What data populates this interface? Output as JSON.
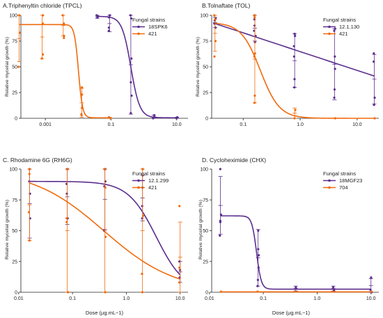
{
  "colors": {
    "purple": "#5b2d8e",
    "orange": "#f06a0c",
    "axis": "#222222"
  },
  "shared_labels": {
    "xlabel": "Dose (µg.mL−1)",
    "ylabel": "Relative mycelial growth (%)",
    "legend_title": "Fungal strains"
  },
  "chart_data": [
    {
      "type": "scatter",
      "panel": "A",
      "title": "A.Triphenyltin chloride (TPCL)",
      "xscale": "log",
      "xlim": [
        0.00018,
        22
      ],
      "ylim": [
        0,
        100
      ],
      "xticks": [
        0.001,
        0.1,
        10.0
      ],
      "xtick_labels": [
        "0.001",
        "0.1",
        "10.0"
      ],
      "yticks": [
        0,
        25,
        50,
        75,
        100
      ],
      "legend": "top-right",
      "fits": [
        {
          "color": "purple",
          "top": 99,
          "bottom": 0.5,
          "ec50": 0.4,
          "hill": 3.2,
          "x_from": 0.038,
          "x_to": 10
        },
        {
          "color": "orange",
          "top": 91,
          "bottom": 0.5,
          "ec50": 0.0102,
          "hill": 7,
          "x_from": 0.00016,
          "x_to": 0.09
        }
      ],
      "series": [
        {
          "name": "18SPK6",
          "color": "purple",
          "x": [
            0.038,
            0.038,
            0.038,
            0.09,
            0.09,
            0.09,
            0.09,
            0.4,
            0.4,
            0.4,
            0.4,
            0.4,
            0.4,
            2,
            2,
            2,
            10,
            10
          ],
          "y": [
            100,
            99,
            98,
            100,
            98,
            88,
            85,
            100,
            97,
            58,
            35,
            22,
            5,
            3,
            1,
            0,
            1,
            0
          ],
          "errorbars": [
            {
              "x": 0.038,
              "lo": 97,
              "hi": 100
            },
            {
              "x": 0.09,
              "lo": 84,
              "hi": 100
            },
            {
              "x": 0.4,
              "lo": 4,
              "hi": 100
            },
            {
              "x": 2,
              "lo": 0,
              "hi": 3
            },
            {
              "x": 10,
              "lo": 0,
              "hi": 1
            }
          ]
        },
        {
          "name": "421",
          "color": "orange",
          "x": [
            0.00016,
            0.00016,
            0.00016,
            0.0008,
            0.0008,
            0.0008,
            0.0008,
            0.0035,
            0.0035,
            0.0035,
            0.0035,
            0.0128,
            0.0128,
            0.0128,
            0.0128,
            0.0128,
            0.09,
            0.09
          ],
          "y": [
            100,
            83,
            50,
            100,
            92,
            62,
            58,
            100,
            92,
            80,
            78,
            30,
            23,
            10,
            4,
            3,
            1,
            0
          ],
          "errorbars": [
            {
              "x": 0.00016,
              "lo": 55,
              "hi": 100
            },
            {
              "x": 0.0008,
              "lo": 58,
              "hi": 100
            },
            {
              "x": 0.0035,
              "lo": 80,
              "hi": 100
            },
            {
              "x": 0.0128,
              "lo": 1,
              "hi": 29
            },
            {
              "x": 0.09,
              "lo": 0,
              "hi": 1
            }
          ]
        }
      ]
    },
    {
      "type": "scatter",
      "panel": "B",
      "title": "B.Tolnaftate (TOL)",
      "xscale": "log",
      "xlim": [
        0.028,
        24
      ],
      "ylim": [
        0,
        100
      ],
      "xticks": [
        0.1,
        1.0,
        10.0
      ],
      "xtick_labels": [
        "0.1",
        "1.0",
        "10.0"
      ],
      "yticks": [
        0,
        25,
        50,
        75,
        100
      ],
      "legend": "top-right",
      "fits": [
        {
          "color": "purple",
          "type": "line_logx",
          "x_from": 0.032,
          "y_from": 92,
          "x_to": 20,
          "y_to": 41
        },
        {
          "color": "orange",
          "top": 93,
          "bottom": 0,
          "ec50": 0.2,
          "hill": 2.6,
          "x_from": 0.032,
          "x_to": 20
        }
      ],
      "series": [
        {
          "name": "12.1.130",
          "color": "purple",
          "x": [
            0.032,
            0.032,
            0.032,
            0.032,
            0.16,
            0.16,
            0.16,
            0.16,
            0.16,
            0.16,
            0.8,
            0.8,
            0.8,
            0.8,
            0.8,
            0.8,
            4,
            4,
            4,
            4,
            4,
            4,
            20,
            20,
            20,
            20
          ],
          "y": [
            97,
            95,
            92,
            88,
            100,
            96,
            90,
            85,
            80,
            74,
            82,
            80,
            70,
            60,
            38,
            30,
            87,
            85,
            60,
            48,
            28,
            20,
            63,
            55,
            20,
            13
          ],
          "errorbars": [
            {
              "x": 0.032,
              "lo": 88,
              "hi": 98
            },
            {
              "x": 0.16,
              "lo": 75,
              "hi": 100
            },
            {
              "x": 0.8,
              "lo": 30,
              "hi": 82
            },
            {
              "x": 4,
              "lo": 18,
              "hi": 87
            },
            {
              "x": 20,
              "lo": 14,
              "hi": 62
            }
          ]
        },
        {
          "name": "421",
          "color": "orange",
          "x": [
            0.032,
            0.032,
            0.032,
            0.032,
            0.16,
            0.16,
            0.16,
            0.16,
            0.16,
            0.16,
            0.8,
            0.8,
            4,
            20
          ],
          "y": [
            100,
            96,
            75,
            60,
            100,
            98,
            63,
            60,
            22,
            15,
            8,
            0,
            0,
            0
          ],
          "errorbars": [
            {
              "x": 0.032,
              "lo": 65,
              "hi": 100
            },
            {
              "x": 0.16,
              "lo": 15,
              "hi": 100
            },
            {
              "x": 0.8,
              "lo": 0,
              "hi": 10
            },
            {
              "x": 4,
              "lo": 0,
              "hi": 0
            },
            {
              "x": 20,
              "lo": 0,
              "hi": 0
            }
          ]
        }
      ]
    },
    {
      "type": "scatter",
      "panel": "C",
      "title": "C. Rhodamine 6G  (RH6G)",
      "xscale": "log",
      "xlim": [
        0.011,
        14
      ],
      "ylim": [
        0,
        100
      ],
      "xticks": [
        0.01,
        0.1,
        1.0,
        10.0
      ],
      "xtick_labels": [
        "0.01",
        "0.1",
        "1.0",
        "10.0"
      ],
      "yticks": [
        0,
        25,
        50,
        75,
        100
      ],
      "legend": "top-right",
      "fits": [
        {
          "color": "purple",
          "top": 90,
          "bottom": 0,
          "ec50": 3.6,
          "hill": 1.65,
          "x_from": 0.016,
          "x_to": 10
        },
        {
          "color": "orange",
          "top": 100,
          "bottom": 0,
          "ec50": 0.38,
          "hill": 0.65,
          "x_from": 0.016,
          "x_to": 10
        }
      ],
      "series": [
        {
          "name": "12.1.299",
          "color": "purple",
          "x": [
            0.016,
            0.016,
            0.016,
            0.016,
            0.08,
            0.08,
            0.08,
            0.08,
            0.4,
            0.4,
            0.4,
            0.4,
            2,
            2,
            2,
            2,
            10,
            10,
            10
          ],
          "y": [
            100,
            90,
            80,
            60,
            100,
            88,
            80,
            60,
            100,
            90,
            86,
            50,
            100,
            85,
            70,
            60,
            25,
            18,
            12
          ],
          "errorbars": [
            {
              "x": 0.016,
              "lo": 44,
              "hi": 100
            },
            {
              "x": 0.08,
              "lo": 55,
              "hi": 100
            },
            {
              "x": 0.4,
              "lo": 51,
              "hi": 100
            },
            {
              "x": 2,
              "lo": 58,
              "hi": 95
            },
            {
              "x": 10,
              "lo": 8,
              "hi": 25
            }
          ]
        },
        {
          "name": "421",
          "color": "orange",
          "x": [
            0.016,
            0.016,
            0.016,
            0.016,
            0.08,
            0.08,
            0.08,
            0.08,
            0.4,
            0.4,
            0.4,
            0.4,
            2,
            2,
            2,
            2,
            10,
            10,
            10
          ],
          "y": [
            100,
            96,
            65,
            42,
            100,
            60,
            57,
            0,
            100,
            85,
            45,
            0,
            100,
            62,
            15,
            0,
            70,
            20,
            8
          ],
          "errorbars": [
            {
              "x": 0.016,
              "lo": 42,
              "hi": 100
            },
            {
              "x": 0.08,
              "lo": 0,
              "hi": 100
            },
            {
              "x": 0.4,
              "lo": 0,
              "hi": 100
            },
            {
              "x": 2,
              "lo": 0,
              "hi": 100
            },
            {
              "x": 10,
              "lo": 0,
              "hi": 57
            }
          ]
        }
      ]
    },
    {
      "type": "scatter",
      "panel": "D",
      "title": "D. Cycloheximide (CHX)",
      "xscale": "log",
      "xlim": [
        0.011,
        14
      ],
      "ylim": [
        0,
        100
      ],
      "xticks": [
        0.01,
        0.1,
        1.0,
        10.0
      ],
      "xtick_labels": [
        "0.01",
        "0.1",
        "1.0",
        "10.0"
      ],
      "yticks": [
        0,
        25,
        50,
        75,
        100
      ],
      "legend": "top-right",
      "fits": [
        {
          "color": "purple",
          "top": 62,
          "bottom": 2.5,
          "ec50": 0.075,
          "hill": 10,
          "x_from": 0.016,
          "x_to": 10
        },
        {
          "color": "orange",
          "type": "flat",
          "y": 0.3,
          "x_from": 0.016,
          "x_to": 10
        }
      ],
      "series": [
        {
          "name": "18MGF23",
          "color": "purple",
          "x": [
            0.016,
            0.016,
            0.016,
            0.016,
            0.016,
            0.08,
            0.08,
            0.08,
            0.08,
            0.08,
            0.08,
            0.4,
            0.4,
            2,
            2,
            10,
            10,
            10
          ],
          "y": [
            100,
            63,
            58,
            57,
            46,
            50,
            35,
            30,
            20,
            10,
            5,
            4,
            3,
            4,
            2,
            12,
            2,
            0
          ],
          "errorbars": [
            {
              "x": 0.016,
              "lo": 47,
              "hi": 94
            },
            {
              "x": 0.08,
              "lo": 5,
              "hi": 51
            },
            {
              "x": 0.4,
              "lo": 1,
              "hi": 5
            },
            {
              "x": 2,
              "lo": 1,
              "hi": 5
            },
            {
              "x": 10,
              "lo": 0,
              "hi": 11
            }
          ]
        },
        {
          "name": "704",
          "color": "orange",
          "x": [
            0.016,
            0.08,
            0.4,
            2,
            10
          ],
          "y": [
            0.5,
            0.5,
            0.5,
            0.5,
            0.5
          ],
          "errorbars": []
        }
      ]
    }
  ]
}
